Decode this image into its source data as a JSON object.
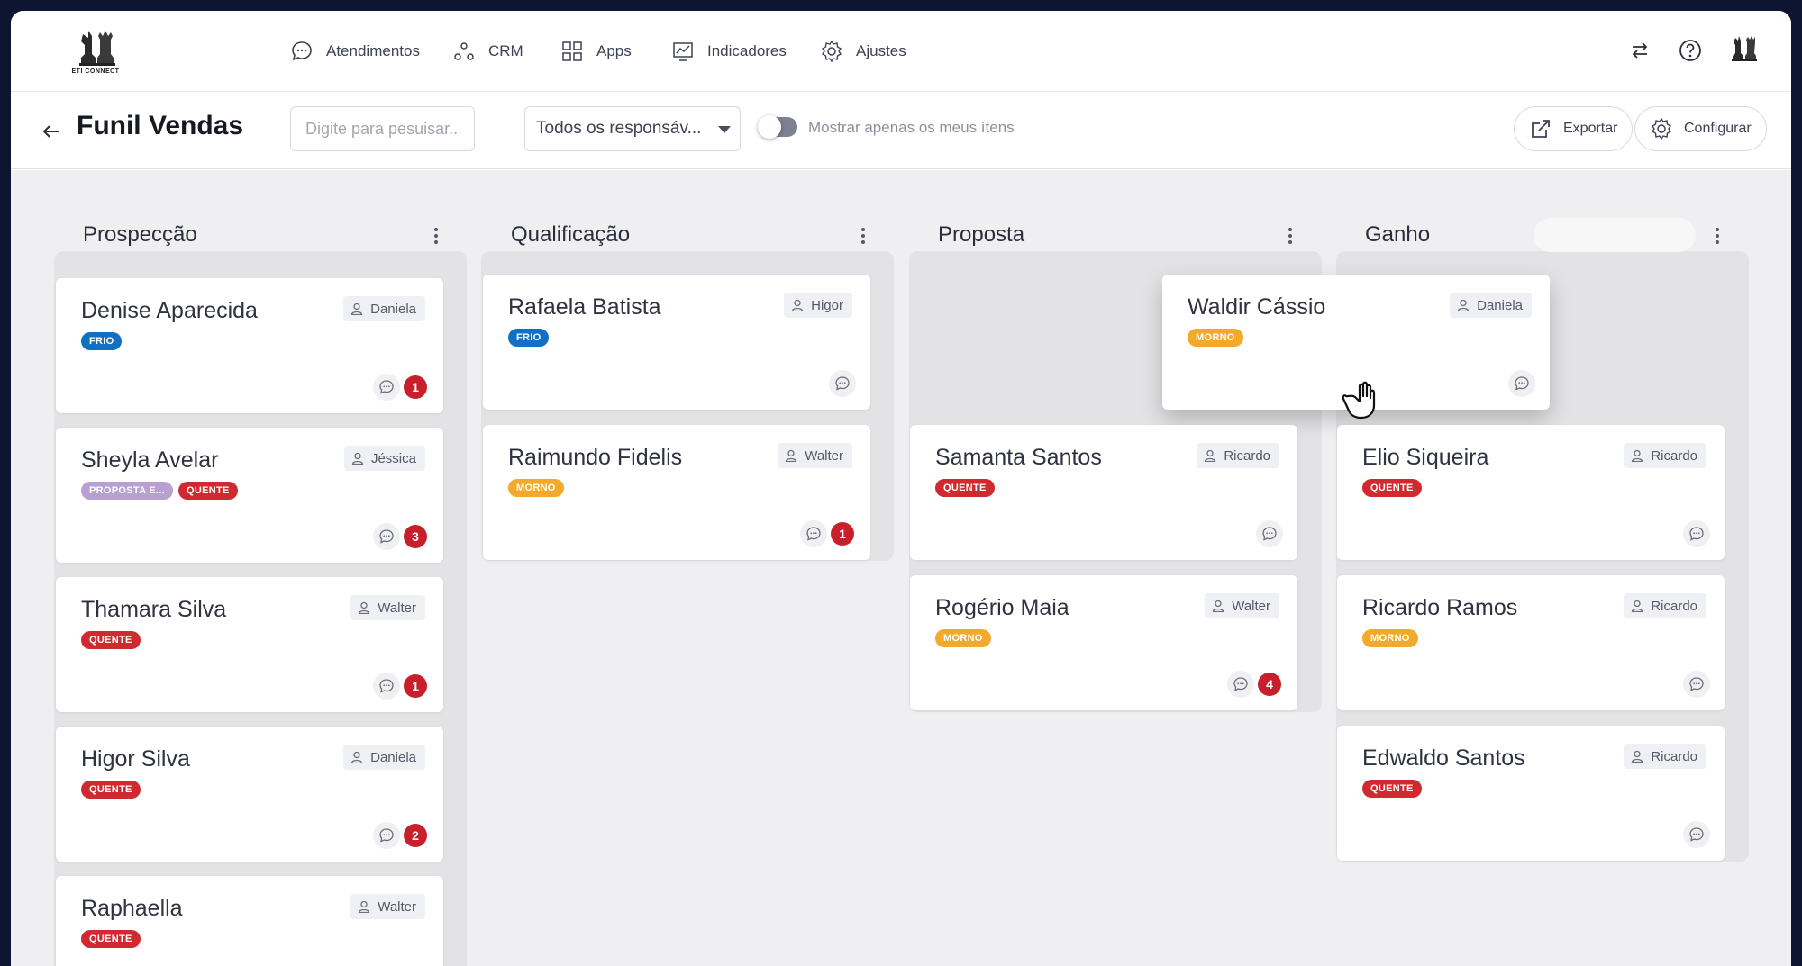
{
  "brand": {
    "logo_text": "ETI CONNECT"
  },
  "nav": {
    "items": [
      {
        "label": "Atendimentos",
        "icon": "chat-bubble-icon"
      },
      {
        "label": "CRM",
        "icon": "crm-network-icon"
      },
      {
        "label": "Apps",
        "icon": "apps-grid-icon"
      },
      {
        "label": "Indicadores",
        "icon": "chart-icon"
      },
      {
        "label": "Ajustes",
        "icon": "gear-icon"
      }
    ]
  },
  "toolbar": {
    "title": "Funil Vendas",
    "search_placeholder": "Digite para pesuisar...",
    "responsible_select": "Todos os responsáv...",
    "toggle_label": "Mostrar apenas os meus ítens",
    "export_label": "Exportar",
    "configure_label": "Configurar"
  },
  "tag_colors": {
    "FRIO": "#1170c4",
    "MORNO": "#f2a92c",
    "QUENTE": "#d02a30",
    "PROPOSTA E...": "#b8a0d3"
  },
  "columns": [
    {
      "title": "Prospecção",
      "cards": [
        {
          "name": "Denise Aparecida",
          "assignee": "Daniela",
          "tags": [
            "FRIO"
          ],
          "count": "1"
        },
        {
          "name": "Sheyla Avelar",
          "assignee": "Jéssica",
          "tags": [
            "PROPOSTA E...",
            "QUENTE"
          ],
          "count": "3"
        },
        {
          "name": "Thamara Silva",
          "assignee": "Walter",
          "tags": [
            "QUENTE"
          ],
          "count": "1"
        },
        {
          "name": "Higor Silva",
          "assignee": "Daniela",
          "tags": [
            "QUENTE"
          ],
          "count": "2"
        },
        {
          "name": "Raphaella",
          "assignee": "Walter",
          "tags": [
            "QUENTE"
          ],
          "count": ""
        }
      ]
    },
    {
      "title": "Qualificação",
      "cards": [
        {
          "name": "Rafaela Batista",
          "assignee": "Higor",
          "tags": [
            "FRIO"
          ],
          "count": ""
        },
        {
          "name": "Raimundo Fidelis",
          "assignee": "Walter",
          "tags": [
            "MORNO"
          ],
          "count": "1"
        }
      ]
    },
    {
      "title": "Proposta",
      "cards": [
        {
          "name": "Waldir Cássio",
          "assignee": "Daniela",
          "tags": [
            "MORNO"
          ],
          "count": ""
        },
        {
          "name": "Samanta Santos",
          "assignee": "Ricardo",
          "tags": [
            "QUENTE"
          ],
          "count": ""
        },
        {
          "name": "Rogério Maia",
          "assignee": "Walter",
          "tags": [
            "MORNO"
          ],
          "count": "4"
        }
      ]
    },
    {
      "title": "Ganho",
      "cards": [
        {
          "name": "Elio Siqueira",
          "assignee": "Ricardo",
          "tags": [
            "QUENTE"
          ],
          "count": ""
        },
        {
          "name": "Ricardo Ramos",
          "assignee": "Ricardo",
          "tags": [
            "MORNO"
          ],
          "count": ""
        },
        {
          "name": "Edwaldo Santos",
          "assignee": "Ricardo",
          "tags": [
            "QUENTE"
          ],
          "count": ""
        }
      ]
    }
  ]
}
